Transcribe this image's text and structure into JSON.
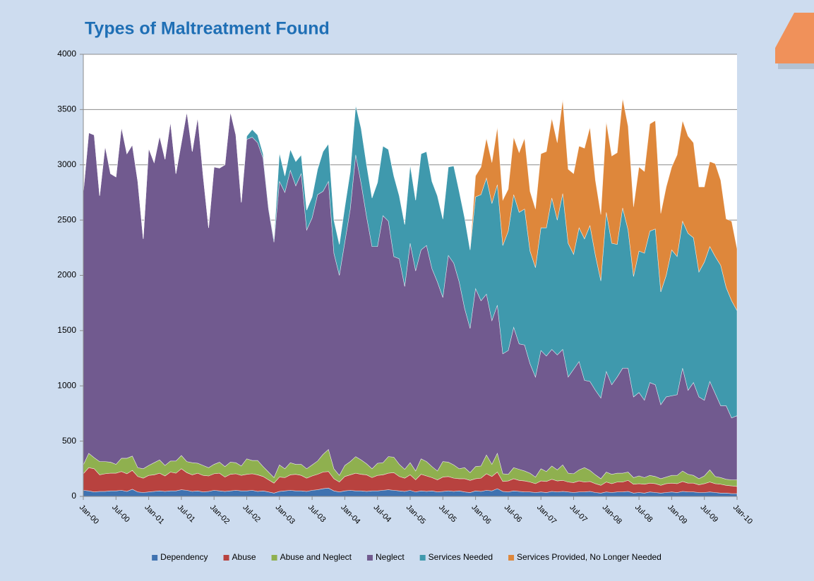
{
  "chart_data": {
    "type": "stacked_area",
    "title": "Types of Maltreatment Found",
    "categories": [
      "Jan-00",
      null,
      null,
      null,
      null,
      null,
      "Jul-00",
      null,
      null,
      null,
      null,
      null,
      "Jan-01",
      null,
      null,
      null,
      null,
      null,
      "Jul-01",
      null,
      null,
      null,
      null,
      null,
      "Jan-02",
      null,
      null,
      null,
      null,
      null,
      "Jul-02",
      null,
      null,
      null,
      null,
      null,
      "Jan-03",
      null,
      null,
      null,
      null,
      null,
      "Jul-03",
      null,
      null,
      null,
      null,
      null,
      "Jan-04",
      null,
      null,
      null,
      null,
      null,
      "Jul-04",
      null,
      null,
      null,
      null,
      null,
      "Jan-05",
      null,
      null,
      null,
      null,
      null,
      "Jul-05",
      null,
      null,
      null,
      null,
      null,
      "Jan-06",
      null,
      null,
      null,
      null,
      null,
      "Jul-06",
      null,
      null,
      null,
      null,
      null,
      "Jan-07",
      null,
      null,
      null,
      null,
      null,
      "Jul-07",
      null,
      null,
      null,
      null,
      null,
      "Jan-08",
      null,
      null,
      null,
      null,
      null,
      "Jul-08",
      null,
      null,
      null,
      null,
      null,
      "Jan-09",
      null,
      null,
      null,
      null,
      null,
      "Jul-09",
      null,
      null,
      null,
      null,
      null,
      "Jan-10"
    ],
    "series": [
      {
        "name": "Dependency",
        "color": "#3f72b0",
        "values": [
          55,
          50,
          40,
          45,
          45,
          50,
          50,
          55,
          45,
          65,
          40,
          35,
          40,
          45,
          50,
          45,
          50,
          50,
          60,
          55,
          45,
          50,
          40,
          45,
          55,
          50,
          45,
          50,
          55,
          50,
          50,
          55,
          45,
          50,
          40,
          30,
          45,
          50,
          55,
          50,
          50,
          45,
          55,
          60,
          70,
          75,
          50,
          40,
          50,
          55,
          50,
          50,
          45,
          50,
          50,
          55,
          60,
          55,
          50,
          45,
          55,
          40,
          50,
          45,
          50,
          40,
          45,
          50,
          45,
          50,
          40,
          35,
          50,
          45,
          55,
          50,
          70,
          45,
          40,
          50,
          45,
          40,
          40,
          35,
          40,
          35,
          45,
          40,
          45,
          40,
          35,
          40,
          40,
          45,
          35,
          30,
          40,
          35,
          40,
          40,
          45,
          30,
          35,
          30,
          40,
          35,
          30,
          35,
          40,
          35,
          45,
          40,
          40,
          35,
          35,
          40,
          35,
          30,
          30,
          25,
          25
        ]
      },
      {
        "name": "Abuse",
        "color": "#b8423f",
        "values": [
          150,
          210,
          210,
          150,
          160,
          160,
          160,
          170,
          160,
          170,
          140,
          130,
          150,
          150,
          160,
          140,
          170,
          160,
          190,
          160,
          150,
          160,
          150,
          140,
          150,
          160,
          130,
          150,
          150,
          140,
          150,
          150,
          150,
          130,
          110,
          90,
          130,
          120,
          140,
          150,
          140,
          120,
          130,
          140,
          150,
          150,
          110,
          90,
          130,
          140,
          160,
          150,
          150,
          120,
          140,
          140,
          150,
          160,
          130,
          120,
          140,
          110,
          150,
          140,
          120,
          110,
          130,
          130,
          120,
          110,
          120,
          110,
          110,
          120,
          150,
          130,
          150,
          90,
          100,
          110,
          100,
          100,
          90,
          80,
          100,
          100,
          110,
          100,
          100,
          90,
          90,
          100,
          90,
          90,
          80,
          70,
          90,
          80,
          90,
          90,
          100,
          80,
          80,
          80,
          80,
          80,
          70,
          80,
          80,
          80,
          90,
          80,
          80,
          70,
          80,
          90,
          80,
          80,
          70,
          70,
          65
        ]
      },
      {
        "name": "Abuse and Neglect",
        "color": "#8fb04f",
        "values": [
          80,
          130,
          100,
          120,
          110,
          100,
          80,
          120,
          140,
          130,
          80,
          85,
          90,
          110,
          120,
          95,
          100,
          110,
          120,
          100,
          110,
          90,
          90,
          75,
          85,
          100,
          95,
          110,
          100,
          85,
          140,
          120,
          130,
          90,
          70,
          50,
          110,
          80,
          110,
          90,
          100,
          85,
          100,
          120,
          160,
          200,
          90,
          60,
          100,
          120,
          150,
          130,
          100,
          80,
          110,
          110,
          150,
          140,
          110,
          80,
          110,
          80,
          140,
          130,
          100,
          80,
          140,
          130,
          120,
          90,
          100,
          70,
          110,
          110,
          170,
          110,
          170,
          70,
          60,
          100,
          100,
          90,
          80,
          60,
          110,
          90,
          120,
          100,
          140,
          80,
          80,
          100,
          130,
          100,
          80,
          60,
          90,
          85,
          80,
          80,
          75,
          60,
          70,
          60,
          70,
          65,
          60,
          60,
          70,
          75,
          95,
          80,
          70,
          55,
          70,
          110,
          65,
          60,
          55,
          55,
          60
        ]
      },
      {
        "name": "Neglect",
        "color": "#715a8f",
        "values": [
          2465,
          2900,
          2920,
          2405,
          2855,
          2610,
          2600,
          2995,
          2755,
          2815,
          2590,
          2080,
          2870,
          2715,
          2930,
          2770,
          3070,
          2600,
          2830,
          3165,
          2815,
          3130,
          2620,
          2170,
          2690,
          2660,
          2730,
          3170,
          2965,
          2385,
          2890,
          2925,
          2875,
          2790,
          2380,
          2130,
          2565,
          2500,
          2645,
          2520,
          2630,
          2160,
          2235,
          2410,
          2380,
          2425,
          1950,
          1810,
          2020,
          2285,
          2730,
          2500,
          2235,
          2010,
          1960,
          2235,
          2130,
          1815,
          1860,
          1655,
          1985,
          1810,
          1890,
          1955,
          1790,
          1710,
          1485,
          1870,
          1825,
          1690,
          1440,
          1305,
          1610,
          1495,
          1455,
          1300,
          1340,
          1085,
          1120,
          1270,
          1135,
          1140,
          990,
          905,
          1070,
          1045,
          1055,
          1040,
          1045,
          870,
          945,
          980,
          790,
          805,
          765,
          730,
          910,
          810,
          870,
          950,
          940,
          730,
          755,
          700,
          840,
          830,
          670,
          725,
          720,
          730,
          930,
          760,
          840,
          740,
          685,
          800,
          750,
          650,
          665,
          560,
          580
        ]
      },
      {
        "name": "Services Needed",
        "color": "#3f99ad",
        "values": [
          0,
          0,
          0,
          0,
          0,
          0,
          0,
          0,
          0,
          0,
          0,
          0,
          0,
          0,
          0,
          0,
          0,
          0,
          0,
          0,
          0,
          0,
          0,
          0,
          0,
          0,
          0,
          0,
          0,
          0,
          30,
          70,
          70,
          40,
          20,
          30,
          260,
          150,
          190,
          220,
          170,
          180,
          190,
          230,
          360,
          340,
          300,
          280,
          320,
          340,
          450,
          500,
          470,
          440,
          580,
          630,
          650,
          730,
          570,
          560,
          710,
          640,
          870,
          850,
          790,
          780,
          710,
          800,
          880,
          820,
          820,
          710,
          830,
          960,
          1050,
          1060,
          1090,
          980,
          1080,
          1200,
          1190,
          1230,
          1020,
          990,
          1110,
          1160,
          1370,
          1220,
          1410,
          1210,
          1040,
          1210,
          1280,
          1410,
          1220,
          1060,
          1440,
          1280,
          1200,
          1450,
          1250,
          1090,
          1280,
          1330,
          1370,
          1410,
          1020,
          1100,
          1320,
          1250,
          1330,
          1420,
          1310,
          1130,
          1250,
          1220,
          1240,
          1270,
          1070,
          1060,
          950
        ]
      },
      {
        "name": "Services Provided, No Longer Needed",
        "color": "#de873b",
        "values": [
          0,
          0,
          0,
          0,
          0,
          0,
          0,
          0,
          0,
          0,
          0,
          0,
          0,
          0,
          0,
          0,
          0,
          0,
          0,
          0,
          0,
          0,
          0,
          0,
          0,
          0,
          0,
          0,
          0,
          0,
          0,
          0,
          0,
          0,
          0,
          0,
          0,
          0,
          0,
          0,
          0,
          0,
          0,
          0,
          0,
          0,
          0,
          0,
          0,
          0,
          0,
          0,
          0,
          0,
          0,
          0,
          0,
          0,
          0,
          0,
          0,
          0,
          0,
          0,
          0,
          0,
          0,
          0,
          0,
          0,
          0,
          0,
          190,
          250,
          360,
          370,
          520,
          410,
          380,
          520,
          540,
          640,
          540,
          530,
          670,
          690,
          720,
          700,
          850,
          670,
          730,
          740,
          820,
          890,
          680,
          600,
          820,
          790,
          830,
          990,
          940,
          630,
          760,
          740,
          970,
          980,
          710,
          800,
          750,
          920,
          910,
          880,
          860,
          770,
          680,
          770,
          840,
          770,
          620,
          720,
          560
        ]
      }
    ],
    "ylim": [
      0,
      4000
    ],
    "yticks": [
      0,
      500,
      1000,
      1500,
      2000,
      2500,
      3000,
      3500,
      4000
    ],
    "grid": true
  }
}
